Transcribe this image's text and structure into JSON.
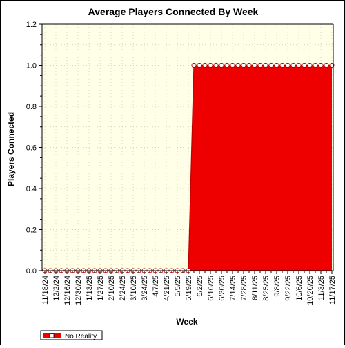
{
  "chart_data": {
    "type": "area",
    "title": "Average Players Connected By Week",
    "xlabel": "Week",
    "ylabel": "Players Connected",
    "ylim": [
      0,
      1.2
    ],
    "yticks": [
      "0.0",
      "0.2",
      "0.4",
      "0.6",
      "0.8",
      "1.0",
      "1.2"
    ],
    "ytick_values": [
      0,
      0.2,
      0.4,
      0.6,
      0.8,
      1.0,
      1.2
    ],
    "x_tick_labels": [
      "11/18/24",
      "12/2/24",
      "12/16/24",
      "12/30/24",
      "1/13/25",
      "1/27/25",
      "2/10/25",
      "2/24/25",
      "3/10/25",
      "3/24/25",
      "4/7/25",
      "4/21/25",
      "5/5/25",
      "5/19/25",
      "6/2/25",
      "6/16/25",
      "6/30/25",
      "7/14/25",
      "7/28/25",
      "8/11/25",
      "8/25/25",
      "9/8/25",
      "9/22/25",
      "10/6/25",
      "10/20/25",
      "11/3/25",
      "11/17/25"
    ],
    "x": [
      "11/18/24",
      "11/25/24",
      "12/2/24",
      "12/9/24",
      "12/16/24",
      "12/23/24",
      "12/30/24",
      "1/6/25",
      "1/13/25",
      "1/20/25",
      "1/27/25",
      "2/3/25",
      "2/10/25",
      "2/17/25",
      "2/24/25",
      "3/3/25",
      "3/10/25",
      "3/17/25",
      "3/24/25",
      "3/31/25",
      "4/7/25",
      "4/14/25",
      "4/21/25",
      "4/28/25",
      "5/5/25",
      "5/12/25",
      "5/19/25",
      "5/26/25",
      "6/2/25",
      "6/9/25",
      "6/16/25",
      "6/23/25",
      "6/30/25",
      "7/7/25",
      "7/14/25",
      "7/21/25",
      "7/28/25",
      "8/4/25",
      "8/11/25",
      "8/18/25",
      "8/25/25",
      "9/1/25",
      "9/8/25",
      "9/15/25",
      "9/22/25",
      "9/29/25",
      "10/6/25",
      "10/13/25",
      "10/20/25",
      "10/27/25",
      "11/3/25",
      "11/10/25",
      "11/17/25"
    ],
    "series": [
      {
        "name": "No Reality",
        "color": "#ee0000",
        "values": [
          0,
          0,
          0,
          0,
          0,
          0,
          0,
          0,
          0,
          0,
          0,
          0,
          0,
          0,
          0,
          0,
          0,
          0,
          0,
          0,
          0,
          0,
          0,
          0,
          0,
          0,
          0,
          1,
          1,
          1,
          1,
          1,
          1,
          1,
          1,
          1,
          1,
          1,
          1,
          1,
          1,
          1,
          1,
          1,
          1,
          1,
          1,
          1,
          1,
          1,
          1,
          1,
          1
        ]
      }
    ],
    "grid": true,
    "plot_background": "#ffffe8",
    "legend_placement": "bottom-left"
  }
}
